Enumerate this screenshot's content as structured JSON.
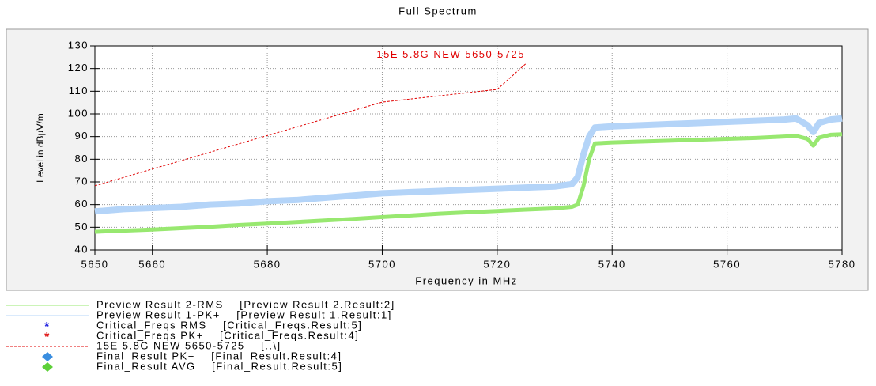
{
  "chart_data": {
    "type": "line",
    "title": "Full Spectrum",
    "xlabel": "Frequency in MHz",
    "ylabel": "Level in dBµV/m",
    "annotation": "15E 5.8G NEW 5650-5725",
    "xlim": [
      5650,
      5780
    ],
    "xticks": [
      5650,
      5660,
      5680,
      5700,
      5720,
      5740,
      5760,
      5780
    ],
    "ylim": [
      40,
      130
    ],
    "yticks": [
      40,
      50,
      60,
      70,
      80,
      90,
      100,
      110,
      120,
      130
    ],
    "grid": true,
    "series": [
      {
        "color": "#b4d4f8",
        "width": 8,
        "x": [
          5650,
          5655,
          5660,
          5665,
          5670,
          5675,
          5680,
          5685,
          5690,
          5695,
          5700,
          5705,
          5710,
          5715,
          5720,
          5725,
          5730,
          5733,
          5734,
          5735,
          5736,
          5737,
          5740,
          5745,
          5750,
          5755,
          5760,
          5765,
          5770,
          5772,
          5774,
          5775,
          5776,
          5778,
          5780
        ],
        "values": [
          57,
          58,
          58.5,
          59,
          60,
          60.5,
          61.5,
          62,
          63,
          64,
          65,
          65.5,
          66,
          66.5,
          67,
          67.5,
          68,
          69,
          72,
          82,
          90,
          94,
          94.5,
          95,
          95.5,
          96,
          96.5,
          97,
          97.5,
          98,
          95,
          92,
          96,
          97.5,
          98
        ]
      },
      {
        "color": "#98e870",
        "width": 5,
        "x": [
          5650,
          5655,
          5660,
          5665,
          5670,
          5675,
          5680,
          5685,
          5690,
          5695,
          5700,
          5705,
          5710,
          5715,
          5720,
          5725,
          5730,
          5733,
          5734,
          5735,
          5736,
          5737,
          5740,
          5745,
          5750,
          5755,
          5760,
          5765,
          5770,
          5772,
          5774,
          5775,
          5776,
          5778,
          5780
        ],
        "values": [
          48,
          48.5,
          49,
          49.6,
          50.2,
          51,
          51.6,
          52.3,
          53,
          53.7,
          54.5,
          55.2,
          56,
          56.6,
          57.2,
          57.8,
          58.3,
          59,
          60,
          68,
          80,
          87,
          87.4,
          87.8,
          88.2,
          88.6,
          89,
          89.4,
          90,
          90.3,
          89,
          86,
          89.5,
          90.8,
          91
        ]
      },
      {
        "color": "#e00000",
        "width": 1,
        "dash": true,
        "x": [
          5650,
          5700,
          5720,
          5725
        ],
        "values": [
          68.3,
          105.2,
          110.8,
          122.2
        ]
      }
    ],
    "legend": [
      {
        "name": "Preview Result 2-RMS    [Preview Result 2.Result:2]",
        "color": "#98e870",
        "symbol": "line"
      },
      {
        "name": "Preview Result 1-PK+    [Preview Result 1.Result:1]",
        "color": "#b4d4f8",
        "symbol": "line"
      },
      {
        "name": "Critical_Freqs RMS    [Critical_Freqs.Result:5]",
        "color": "#2020e0",
        "symbol": "star"
      },
      {
        "name": "Critical_Freqs PK+    [Critical_Freqs.Result:4]",
        "color": "#e02020",
        "symbol": "star"
      },
      {
        "name": "15E 5.8G NEW 5650-5725    [..\\]",
        "color": "#e00000",
        "symbol": "dash"
      },
      {
        "name": "Final_Result PK+    [Final_Result.Result:4]",
        "color": "#3a8ee0",
        "symbol": "diamond"
      },
      {
        "name": "Final_Result AVG    [Final_Result.Result:5]",
        "color": "#5ed03a",
        "symbol": "diamond"
      }
    ]
  }
}
